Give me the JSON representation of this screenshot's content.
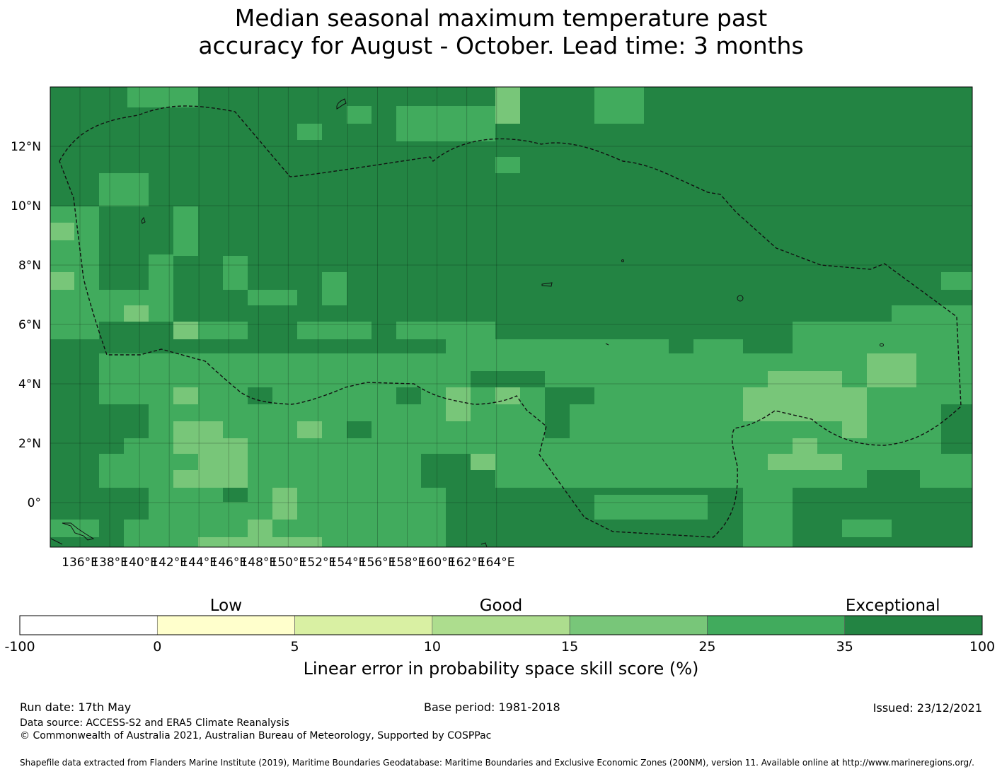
{
  "title_line1": "Median seasonal maximum temperature past",
  "title_line2": "accuracy for August - October. Lead time: 3 months",
  "map": {
    "lon_ticks": [
      "136°E",
      "138°E",
      "140°E",
      "142°E",
      "144°E",
      "146°E",
      "148°E",
      "150°E",
      "152°E",
      "154°E",
      "156°E",
      "158°E",
      "160°E",
      "162°E",
      "164°E"
    ],
    "lat_ticks": [
      "12°N",
      "10°N",
      "8°N",
      "6°N",
      "4°N",
      "2°N",
      "0°"
    ],
    "colors": {
      "c15": "#78c679",
      "c25": "#41ab5d",
      "c35": "#238443"
    }
  },
  "legend": {
    "categories": [
      "Low",
      "Good",
      "Exceptional"
    ],
    "boundaries": [
      "-100",
      "0",
      "5",
      "10",
      "15",
      "25",
      "35",
      "100"
    ],
    "colors": [
      "#ffffff",
      "#ffffcc",
      "#d9f0a3",
      "#addd8e",
      "#78c679",
      "#41ab5d",
      "#238443"
    ],
    "label": "Linear error in probability space skill score (%)"
  },
  "footer": {
    "run_date": "Run date: 17th May",
    "base_period": "Base period: 1981-2018",
    "issued": "Issued: 23/12/2021",
    "data_source": "Data source: ACCESS-S2 and ERA5 Climate Reanalysis",
    "copyright": "© Commonwealth of Australia 2021, Australian Bureau of Meteorology, Supported by COSPPac",
    "shapefile": "Shapefile data extracted from Flanders Marine Institute (2019), Maritime Boundaries Geodatabase: Maritime Boundaries and Exclusive Economic Zones (200NM), version 11. Available online at http://www.marineregions.org/."
  }
}
